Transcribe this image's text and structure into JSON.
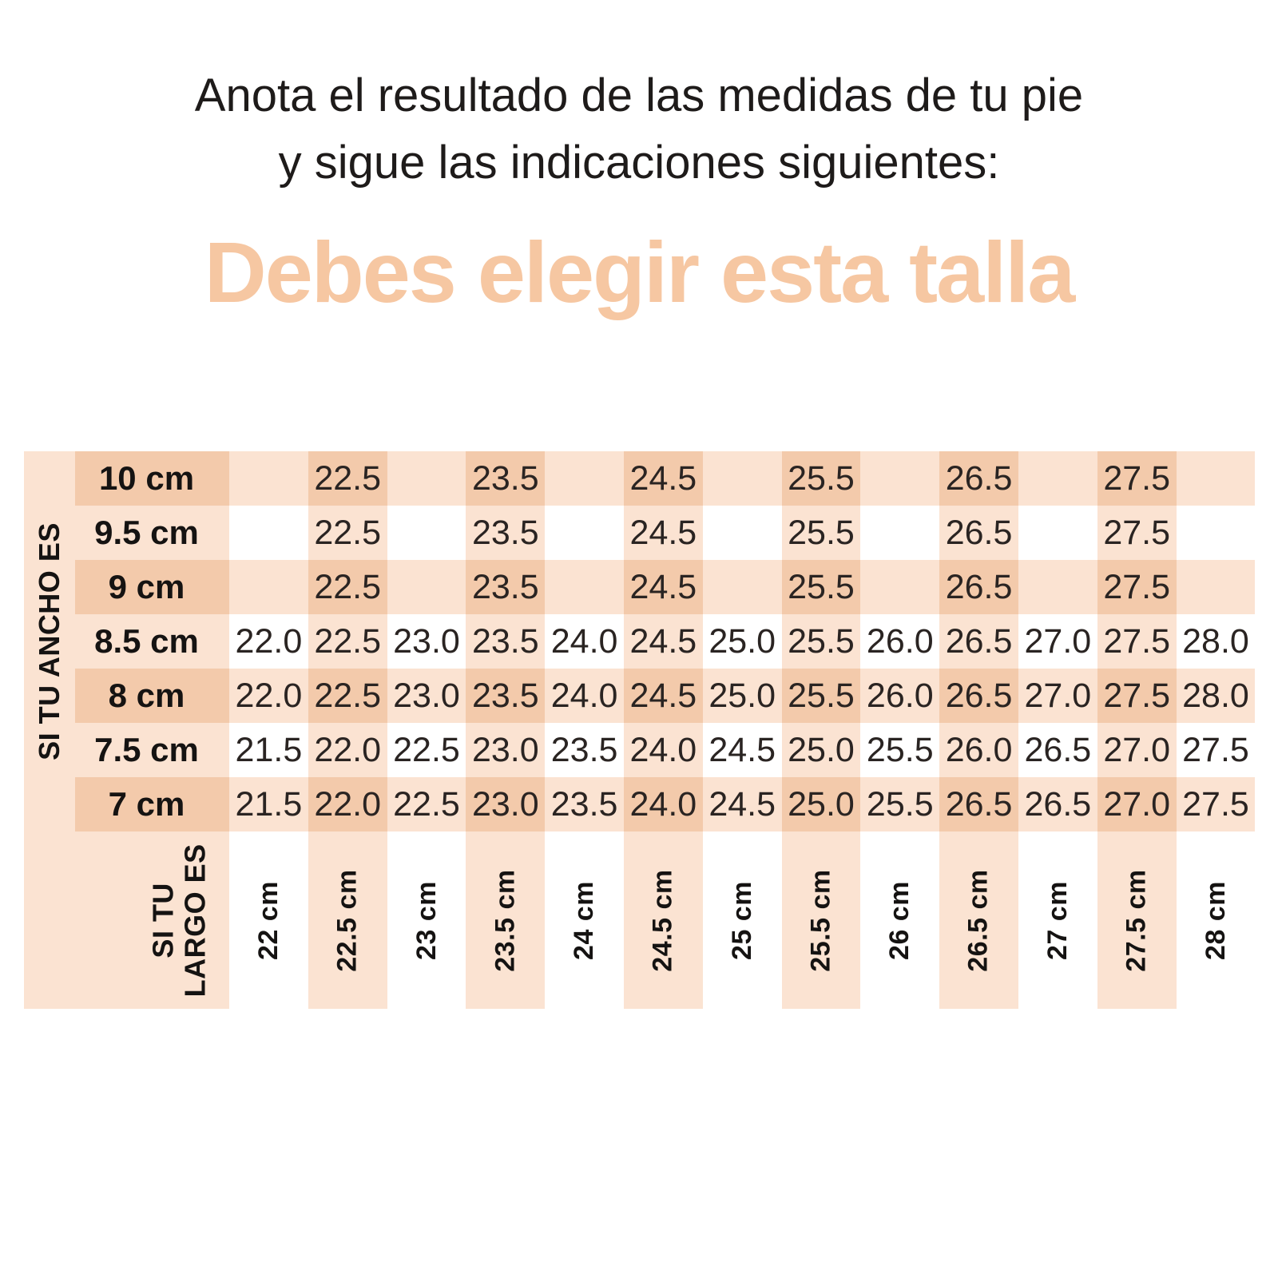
{
  "header": {
    "title_line1": "Anota el resultado de las medidas de tu pie",
    "title_line2": "y sigue las indicaciones siguientes:",
    "headline": "Debes elegir esta talla"
  },
  "colors": {
    "headline_peach": "#f6c7a2",
    "stripe_light": "#fbe3d2",
    "stripe_dark": "#f3caab",
    "text_dark": "#2a2422",
    "background": "#ffffff"
  },
  "chart_data": {
    "type": "table",
    "title": "Debes elegir esta talla",
    "row_axis_label": "SI TU ANCHO ES",
    "col_axis_label": "SI TU LARGO ES",
    "col_axis_label_lines": [
      "SI TU",
      "LARGO ES"
    ],
    "row_labels": [
      "10 cm",
      "9.5 cm",
      "9 cm",
      "8.5 cm",
      "8 cm",
      "7.5 cm",
      "7 cm"
    ],
    "column_labels": [
      "22 cm",
      "22.5 cm",
      "23 cm",
      "23.5 cm",
      "24 cm",
      "24.5 cm",
      "25 cm",
      "25.5 cm",
      "26 cm",
      "26.5 cm",
      "27 cm",
      "27.5 cm",
      "28 cm"
    ],
    "rows": [
      {
        "label": "10 cm",
        "values": [
          "",
          "22.5",
          "",
          "23.5",
          "",
          "24.5",
          "",
          "25.5",
          "",
          "26.5",
          "",
          "27.5",
          ""
        ]
      },
      {
        "label": "9.5 cm",
        "values": [
          "",
          "22.5",
          "",
          "23.5",
          "",
          "24.5",
          "",
          "25.5",
          "",
          "26.5",
          "",
          "27.5",
          ""
        ]
      },
      {
        "label": "9 cm",
        "values": [
          "",
          "22.5",
          "",
          "23.5",
          "",
          "24.5",
          "",
          "25.5",
          "",
          "26.5",
          "",
          "27.5",
          ""
        ]
      },
      {
        "label": "8.5 cm",
        "values": [
          "22.0",
          "22.5",
          "23.0",
          "23.5",
          "24.0",
          "24.5",
          "25.0",
          "25.5",
          "26.0",
          "26.5",
          "27.0",
          "27.5",
          "28.0"
        ]
      },
      {
        "label": "8 cm",
        "values": [
          "22.0",
          "22.5",
          "23.0",
          "23.5",
          "24.0",
          "24.5",
          "25.0",
          "25.5",
          "26.0",
          "26.5",
          "27.0",
          "27.5",
          "28.0"
        ]
      },
      {
        "label": "7.5 cm",
        "values": [
          "21.5",
          "22.0",
          "22.5",
          "23.0",
          "23.5",
          "24.0",
          "24.5",
          "25.0",
          "25.5",
          "26.0",
          "26.5",
          "27.0",
          "27.5"
        ]
      },
      {
        "label": "7 cm",
        "values": [
          "21.5",
          "22.0",
          "22.5",
          "23.0",
          "23.5",
          "24.0",
          "24.5",
          "25.0",
          "25.5",
          "26.5",
          "26.5",
          "27.0",
          "27.5"
        ]
      }
    ]
  }
}
